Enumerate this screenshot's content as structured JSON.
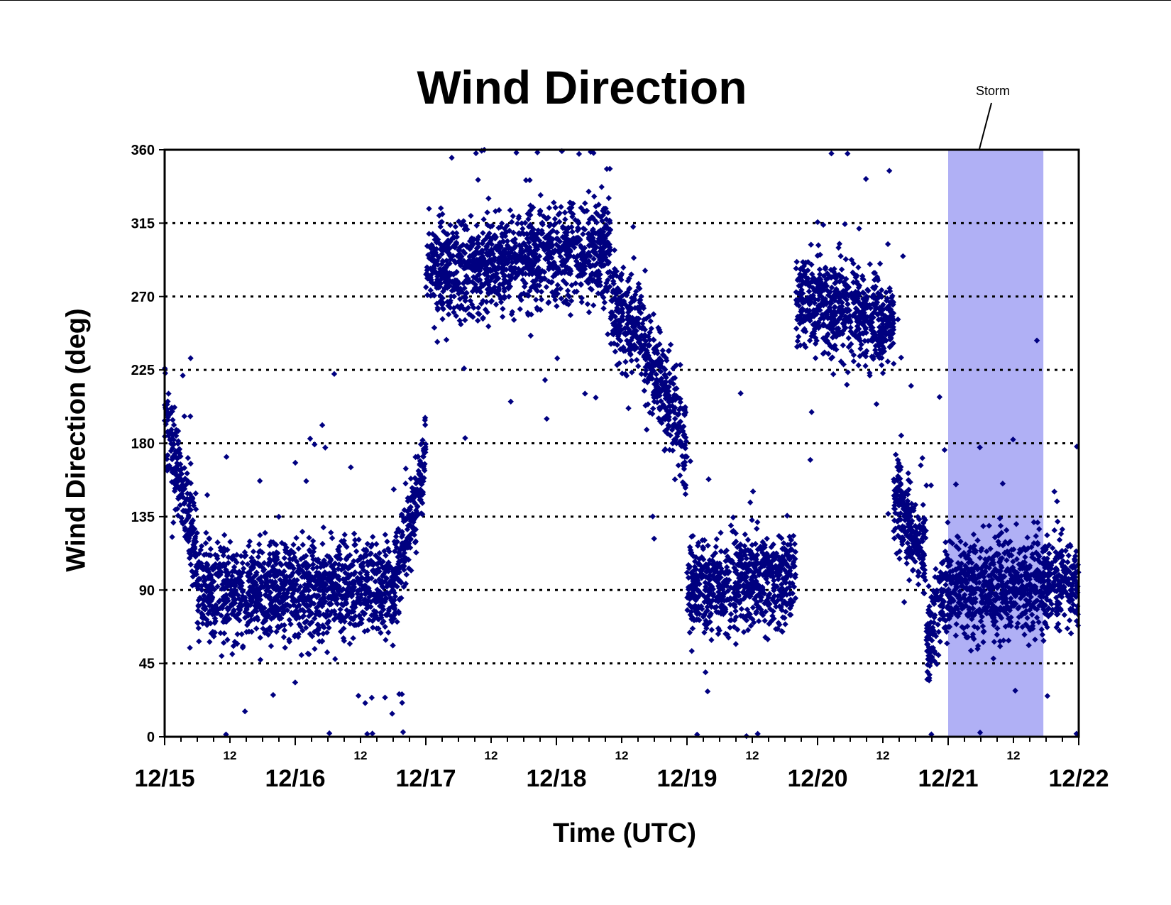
{
  "chart_data": {
    "type": "scatter",
    "title": "Wind Direction",
    "xlabel": "Time (UTC)",
    "ylabel": "Wind Direction (deg)",
    "ylim": [
      0,
      360
    ],
    "xlim": [
      "12/15 00:00",
      "12/22 00:00"
    ],
    "y_ticks": [
      0,
      45,
      90,
      135,
      180,
      225,
      270,
      315,
      360
    ],
    "x_date_labels": [
      "12/15",
      "12/16",
      "12/17",
      "12/18",
      "12/19",
      "12/20",
      "12/21",
      "12/22"
    ],
    "x_hour_labels": [
      "12",
      "12",
      "12",
      "12",
      "12",
      "12",
      "12"
    ],
    "grid": "horizontal dotted lines at y ticks",
    "marker": "diamond",
    "color": "#000080",
    "storm_shade": {
      "label": "Storm",
      "start": "12/21 00:00",
      "end": "12/21 17:30",
      "color": "#b0b0f5"
    },
    "series_outline": [
      {
        "start": "12/15 00:00",
        "end": "12/15 06:00",
        "dir_from": 200,
        "dir_to": 110
      },
      {
        "start": "12/15 06:00",
        "end": "12/16 18:00",
        "dir_from": 90,
        "dir_to": 90
      },
      {
        "start": "12/16 18:00",
        "end": "12/17 00:00",
        "dir_from": 90,
        "dir_to": 170
      },
      {
        "start": "12/17 00:00",
        "end": "12/18 10:00",
        "dir_from": 285,
        "dir_to": 300
      },
      {
        "start": "12/18 10:00",
        "end": "12/18 16:00",
        "dir_from": 260,
        "dir_to": 250
      },
      {
        "start": "12/18 16:00",
        "end": "12/19 00:00",
        "dir_from": 240,
        "dir_to": 180
      },
      {
        "start": "12/19 00:00",
        "end": "12/19 20:00",
        "dir_from": 90,
        "dir_to": 100
      },
      {
        "start": "12/19 20:00",
        "end": "12/20 14:00",
        "dir_from": 270,
        "dir_to": 255
      },
      {
        "start": "12/20 14:00",
        "end": "12/20 20:00",
        "dir_from": 145,
        "dir_to": 110
      },
      {
        "start": "12/20 20:00",
        "end": "12/21 00:00",
        "dir_from": 60,
        "dir_to": 95
      },
      {
        "start": "12/21 00:00",
        "end": "12/22 00:00",
        "dir_from": 90,
        "dir_to": 95
      }
    ]
  }
}
